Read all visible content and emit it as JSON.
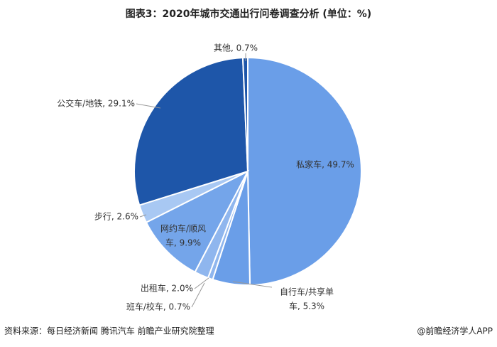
{
  "chart_data": {
    "type": "pie",
    "title": "图表3：2020年城市交通出行问卷调查分析 (单位：%)",
    "categories": [
      "私家车",
      "自行车/共享单车",
      "班车/校车",
      "出租车",
      "网约车/顺风车",
      "步行",
      "公交车/地铁",
      "其他"
    ],
    "values": [
      49.7,
      5.3,
      0.7,
      2.0,
      9.9,
      2.6,
      29.1,
      0.7
    ],
    "value_labels": [
      [
        "私家车, 49.7%"
      ],
      [
        "自行车/共享单",
        "车, 5.3%"
      ],
      [
        "班车/校车, 0.7%"
      ],
      [
        "出租车, 2.0%"
      ],
      [
        "网约车/顺风",
        "车, 9.9%"
      ],
      [
        "步行, 2.6%"
      ],
      [
        "公交车/地铁, 29.1%"
      ],
      [
        "其他, 0.7%"
      ]
    ],
    "colors": [
      "#6a9ee8",
      "#6a9ee8",
      "#8fb6ee",
      "#8fb6ee",
      "#74a5ea",
      "#a8c8f3",
      "#1e56a9",
      "#1e56a9"
    ]
  },
  "footer": {
    "source": "资料来源：每日经济新闻 腾讯汽车 前瞻产业研究院整理",
    "brand": "@前瞻经济学人APP"
  }
}
